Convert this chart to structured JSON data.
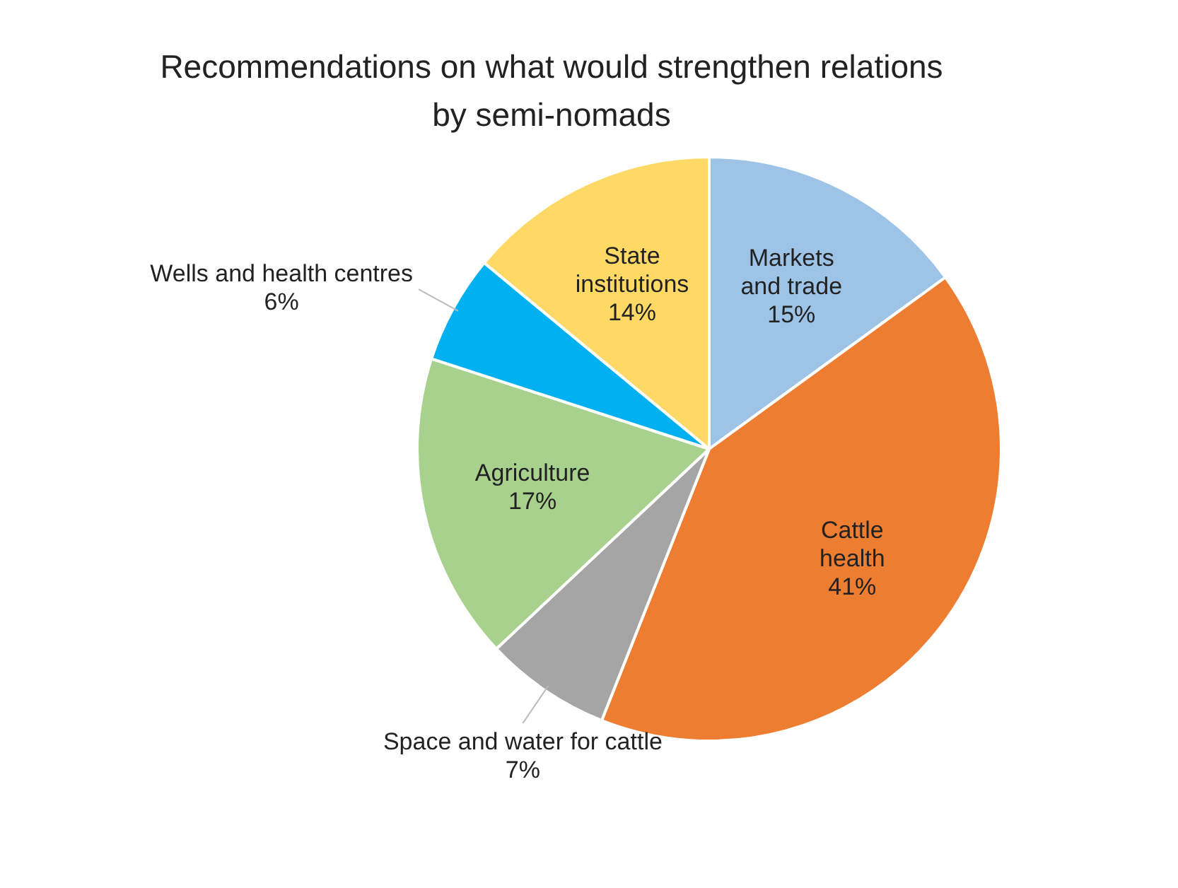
{
  "chart_data": {
    "type": "pie",
    "title": "Recommendations on what would strengthen relations by semi-nomads",
    "categories": [
      "Markets and trade",
      "Cattle health",
      "Space and water for cattle",
      "Agriculture",
      "Wells and health centres",
      "State institutions"
    ],
    "values": [
      15,
      41,
      7,
      17,
      6,
      14
    ],
    "value_labels": [
      "15%",
      "41%",
      "7%",
      "17%",
      "6%",
      "14%"
    ],
    "colors": [
      "#9dc3e6",
      "#ed7d31",
      "#a5a5a5",
      "#a9d18e",
      "#00b0f0",
      "#ffd966"
    ],
    "legend": false
  }
}
